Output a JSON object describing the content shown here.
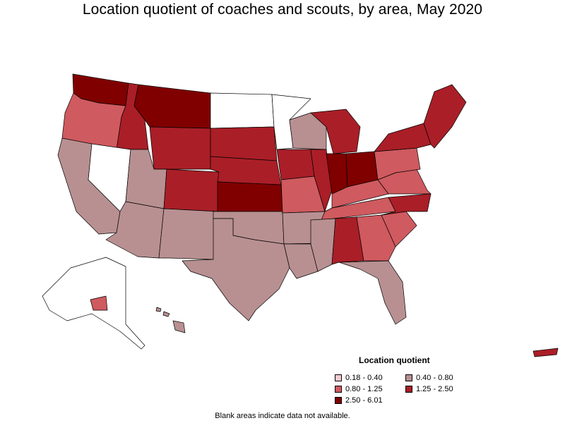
{
  "title": "Location quotient of coaches and scouts, by area, May 2020",
  "legend": {
    "title": "Location quotient",
    "items": [
      {
        "label": "0.18 - 0.40",
        "color": "#f8c9cd"
      },
      {
        "label": "0.40 - 0.80",
        "color": "#b89091"
      },
      {
        "label": "0.80 - 1.25",
        "color": "#cf5a5f"
      },
      {
        "label": "1.25 - 2.50",
        "color": "#aa1e27"
      },
      {
        "label": "2.50 - 6.01",
        "color": "#800000"
      }
    ]
  },
  "footnote": "Blank areas indicate data not available."
}
